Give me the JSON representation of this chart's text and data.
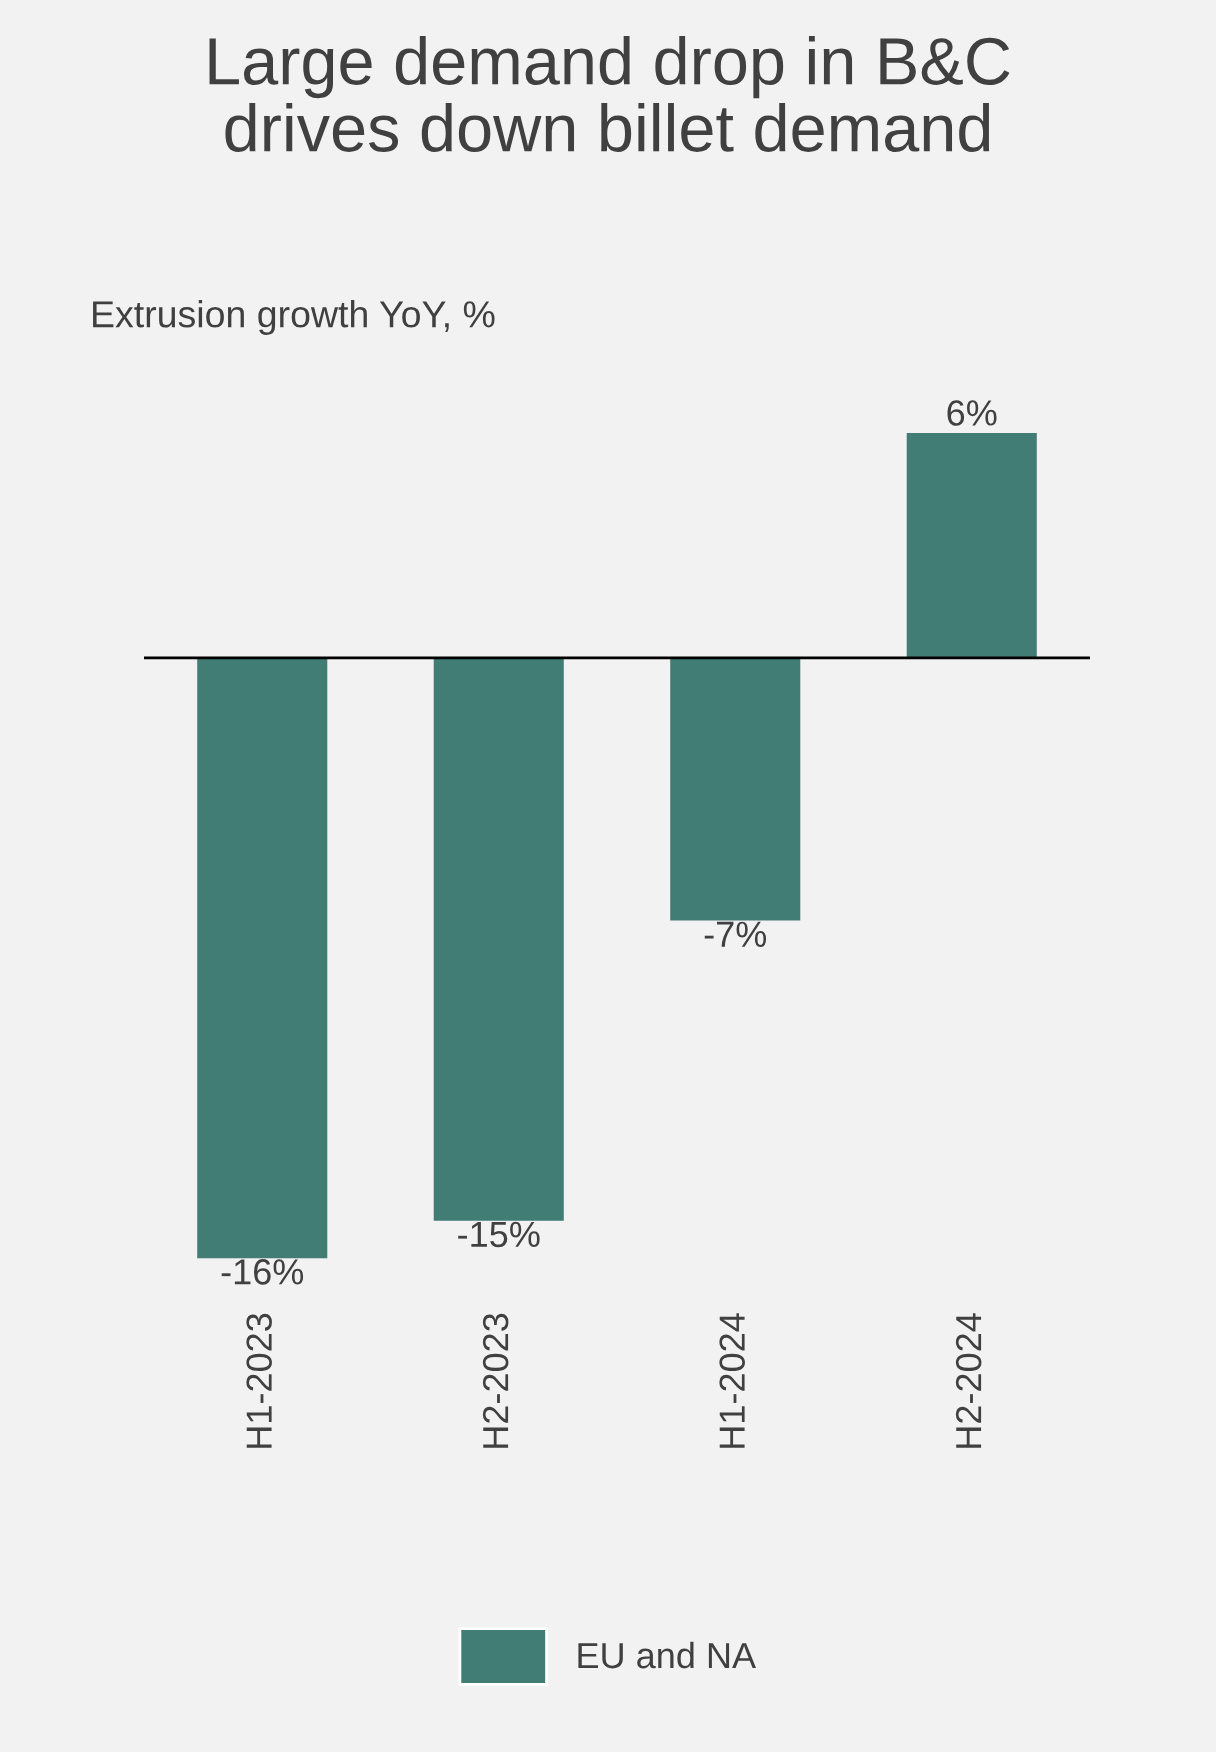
{
  "chart_data": {
    "type": "bar",
    "title": "Large demand drop in B&C\ndrives down billet demand",
    "subtitle": "Extrusion growth YoY, %",
    "categories": [
      "H1-2023",
      "H2-2023",
      "H1-2024",
      "H2-2024"
    ],
    "series": [
      {
        "name": "EU and NA",
        "color": "#417d74",
        "values": [
          -16,
          -15,
          -7,
          6
        ],
        "value_labels": [
          "-16%",
          "-15%",
          "-7%",
          "6%"
        ]
      }
    ],
    "legend": "bottom",
    "grid": false
  }
}
